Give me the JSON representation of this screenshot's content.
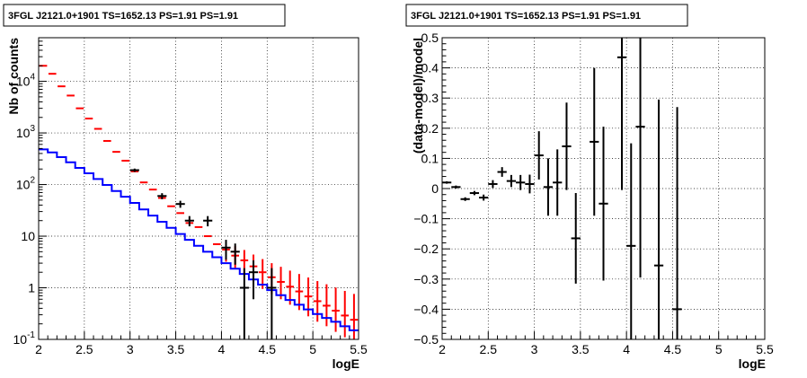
{
  "chart_data": [
    {
      "type": "line",
      "title": "3FGL J2121.0+1901 TS=1652.13 PS=1.91 PS=1.91",
      "xlabel": "logE",
      "ylabel": "Nb of counts",
      "xlim": [
        2,
        5.5
      ],
      "ylim": [
        0.1,
        70000
      ],
      "log_y": true,
      "grid": true,
      "x_ticks": [
        "2",
        "2.5",
        "3",
        "3.5",
        "4",
        "4.5",
        "5",
        "5.5"
      ],
      "y_ticks": [
        {
          "value": 0.1,
          "base": "10",
          "exp": "-1"
        },
        {
          "value": 1,
          "label": "1"
        },
        {
          "value": 10,
          "label": "10"
        },
        {
          "value": 100,
          "base": "10",
          "exp": "2"
        },
        {
          "value": 1000,
          "base": "10",
          "exp": "3"
        },
        {
          "value": 10000,
          "base": "10",
          "exp": "4"
        }
      ],
      "bin_edges": [
        2.0,
        2.1,
        2.2,
        2.3,
        2.4,
        2.5,
        2.6,
        2.7,
        2.8,
        2.9,
        3.0,
        3.1,
        3.2,
        3.3,
        3.4,
        3.5,
        3.6,
        3.7,
        3.8,
        3.9,
        4.0,
        4.1,
        4.2,
        4.3,
        4.4,
        4.5,
        4.6,
        4.7,
        4.8,
        4.9,
        5.0,
        5.1,
        5.2,
        5.3,
        5.4,
        5.5
      ],
      "series": [
        {
          "role": "model_step",
          "color": "#0000ff",
          "values": [
            480,
            420,
            340,
            270,
            210,
            165,
            128,
            98,
            75,
            58,
            44,
            33,
            25,
            19,
            14.5,
            11,
            8.5,
            6.5,
            5,
            3.9,
            3,
            2.35,
            1.85,
            1.45,
            1.15,
            0.9,
            0.72,
            0.58,
            0.47,
            0.38,
            0.31,
            0.26,
            0.22,
            0.18,
            0.15
          ]
        },
        {
          "role": "model_points",
          "color": "#ff0000",
          "x": [
            2.05,
            2.15,
            2.25,
            2.35,
            2.45,
            2.55,
            2.65,
            2.75,
            2.85,
            2.95,
            3.05,
            3.15,
            3.25,
            3.35,
            3.45,
            3.55,
            3.65,
            3.75,
            3.85,
            3.95,
            4.05,
            4.15,
            4.25,
            4.35,
            4.45,
            4.55,
            4.65,
            4.75,
            4.85,
            4.95,
            5.05,
            5.15,
            5.25,
            5.35,
            5.45
          ],
          "y": [
            20000,
            14000,
            8000,
            5300,
            3000,
            1900,
            1200,
            700,
            430,
            290,
            180,
            110,
            80,
            55,
            38,
            28,
            18,
            15,
            10,
            7,
            5.5,
            4.2,
            3.4,
            2.6,
            2.0,
            1.6,
            1.3,
            1.05,
            0.85,
            0.68,
            0.55,
            0.45,
            0.36,
            0.29,
            0.24
          ],
          "err_lo": [
            0,
            0,
            0,
            0,
            0,
            0,
            0,
            0,
            0,
            0,
            0,
            0,
            0,
            0,
            0,
            0,
            0,
            0,
            0,
            0,
            2.3,
            1.9,
            1.6,
            1.3,
            1.05,
            0.85,
            0.7,
            0.58,
            0.48,
            0.4,
            0.33,
            0.27,
            0.22,
            0.18,
            0.15
          ],
          "err_hi": [
            0,
            0,
            0,
            0,
            0,
            0,
            0,
            0,
            0,
            0,
            0,
            0,
            0,
            0,
            0,
            0,
            0,
            0,
            0,
            0,
            2.3,
            2.2,
            2.0,
            1.8,
            1.6,
            1.4,
            1.25,
            1.1,
            1.0,
            0.9,
            0.8,
            0.72,
            0.65,
            0.58,
            0.52
          ]
        },
        {
          "role": "data_points",
          "color": "#000000",
          "x": [
            3.05,
            3.35,
            3.55,
            3.65,
            3.85,
            4.05,
            4.15,
            4.25,
            4.35,
            4.55
          ],
          "y": [
            190,
            60,
            42,
            20,
            20,
            6,
            5,
            1,
            2,
            1
          ],
          "err_lo": [
            14,
            8,
            6.5,
            4.5,
            4.5,
            2.5,
            2.2,
            0.9,
            1.4,
            0.9
          ],
          "err_hi": [
            14,
            8,
            6.5,
            4.5,
            4.5,
            2.5,
            2.2,
            1.4,
            1.4,
            1.4
          ]
        }
      ]
    },
    {
      "type": "scatter",
      "title": "3FGL J2121.0+1901 TS=1652.13 PS=1.91 PS=1.91",
      "xlabel": "logE",
      "ylabel": "(data-model)/model",
      "xlim": [
        2,
        5.5
      ],
      "ylim": [
        -0.5,
        0.5
      ],
      "grid": true,
      "x_ticks": [
        "2",
        "2.5",
        "3",
        "3.5",
        "4",
        "4.5",
        "5",
        "5.5"
      ],
      "y_ticks": [
        "−0.5",
        "−0.4",
        "−0.3",
        "−0.2",
        "−0.1",
        "0",
        "0.1",
        "0.2",
        "0.3",
        "0.4",
        "0.5"
      ],
      "series": [
        {
          "role": "residuals",
          "color": "#000000",
          "x": [
            2.05,
            2.15,
            2.25,
            2.35,
            2.45,
            2.55,
            2.65,
            2.75,
            2.85,
            2.95,
            3.05,
            3.15,
            3.25,
            3.35,
            3.45,
            3.65,
            3.75,
            3.95,
            4.05,
            4.15,
            4.35,
            4.55
          ],
          "y": [
            0.02,
            0.005,
            -0.035,
            -0.015,
            -0.03,
            0.015,
            0.055,
            0.025,
            0.02,
            0.015,
            0.11,
            0.005,
            0.02,
            0.14,
            -0.165,
            0.155,
            -0.05,
            0.435,
            -0.19,
            0.205,
            -0.255,
            -0.4
          ],
          "err": [
            0.004,
            0.005,
            0.006,
            0.007,
            0.01,
            0.013,
            0.016,
            0.02,
            0.025,
            0.031,
            0.08,
            0.095,
            0.11,
            0.145,
            0.15,
            0.245,
            0.255,
            0.44,
            0.34,
            0.5,
            0.55,
            0.67
          ]
        }
      ]
    }
  ]
}
